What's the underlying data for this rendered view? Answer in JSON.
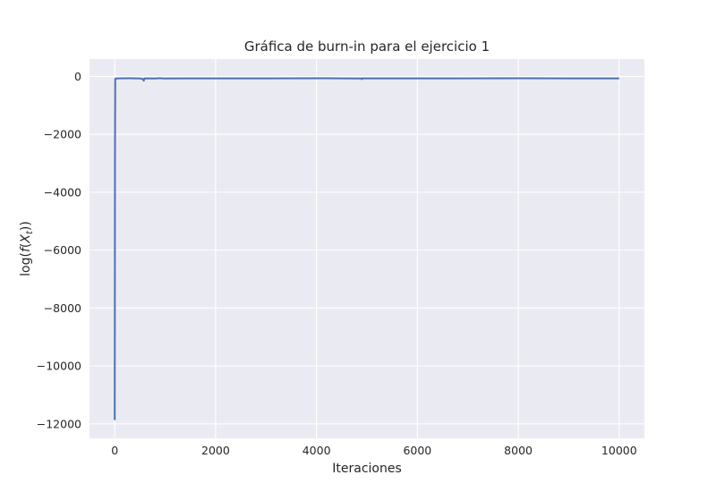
{
  "chart_data": {
    "type": "line",
    "title": "Gráfica de burn-in para el ejercicio 1",
    "xlabel": "Iteraciones",
    "ylabel": {
      "prefix": "log(",
      "func": "f",
      "open": "(",
      "var": "X",
      "sub": "t",
      "close": "))"
    },
    "xlim": [
      -500,
      10500
    ],
    "ylim": [
      -12500,
      600
    ],
    "xticks": [
      0,
      2000,
      4000,
      6000,
      8000,
      10000
    ],
    "xtick_labels": [
      "0",
      "2000",
      "4000",
      "6000",
      "8000",
      "10000"
    ],
    "yticks": [
      0,
      -2000,
      -4000,
      -6000,
      -8000,
      -10000,
      -12000
    ],
    "ytick_labels": [
      "0",
      "−2000",
      "−4000",
      "−6000",
      "−8000",
      "−10000",
      "−12000"
    ],
    "grid": true,
    "style": {
      "background": "#EAEAF2",
      "grid_color": "#FFFFFF",
      "line_color": "#4C72B0"
    },
    "series": [
      {
        "x": [
          0,
          2,
          5,
          10,
          30,
          100,
          300,
          500,
          560,
          575,
          590,
          620,
          800,
          900,
          950,
          1500,
          3000,
          4200,
          4890,
          4900,
          4910,
          6000,
          8000,
          9000,
          10000
        ],
        "values": [
          -11870,
          -9000,
          -3000,
          -80,
          -72,
          -68,
          -66,
          -70,
          -90,
          -150,
          -70,
          -68,
          -70,
          -60,
          -70,
          -68,
          -67,
          -66,
          -70,
          -95,
          -68,
          -67,
          -66,
          -67,
          -67
        ]
      }
    ]
  }
}
